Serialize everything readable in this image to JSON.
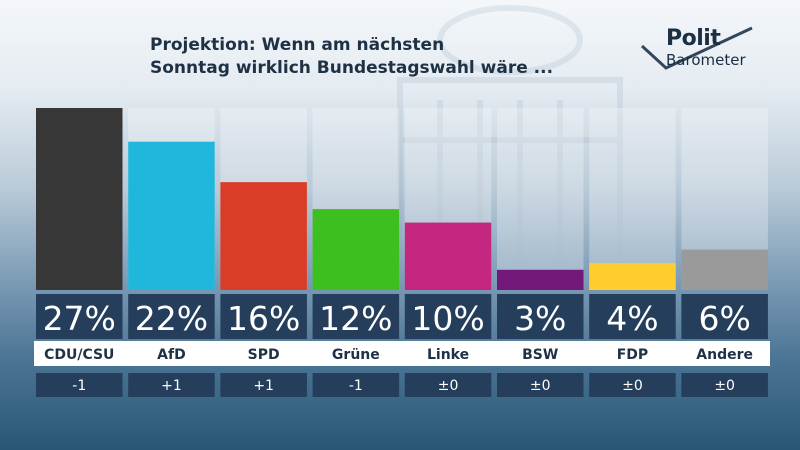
{
  "header": {
    "title_line1": "Projektion: Wenn am nächsten",
    "title_line2": "Sonntag wirklich Bundestagswahl wäre ..."
  },
  "logo": {
    "word1": "Polit",
    "word2": "Barometer"
  },
  "chart_data": {
    "type": "bar",
    "categories": [
      "CDU/CSU",
      "AfD",
      "SPD",
      "Grüne",
      "Linke",
      "BSW",
      "FDP",
      "Andere"
    ],
    "values": [
      27,
      22,
      16,
      12,
      10,
      3,
      4,
      6
    ],
    "value_labels": [
      "27%",
      "22%",
      "16%",
      "12%",
      "10%",
      "3%",
      "4%",
      "6%"
    ],
    "changes": [
      "-1",
      "+1",
      "+1",
      "-1",
      "±0",
      "±0",
      "±0",
      "±0"
    ],
    "colors": [
      "#373737",
      "#1fb7dc",
      "#d93c27",
      "#3cbf1f",
      "#c4277f",
      "#731979",
      "#ffcd2e",
      "#9a9a9a"
    ],
    "ylim": [
      0,
      27
    ]
  }
}
